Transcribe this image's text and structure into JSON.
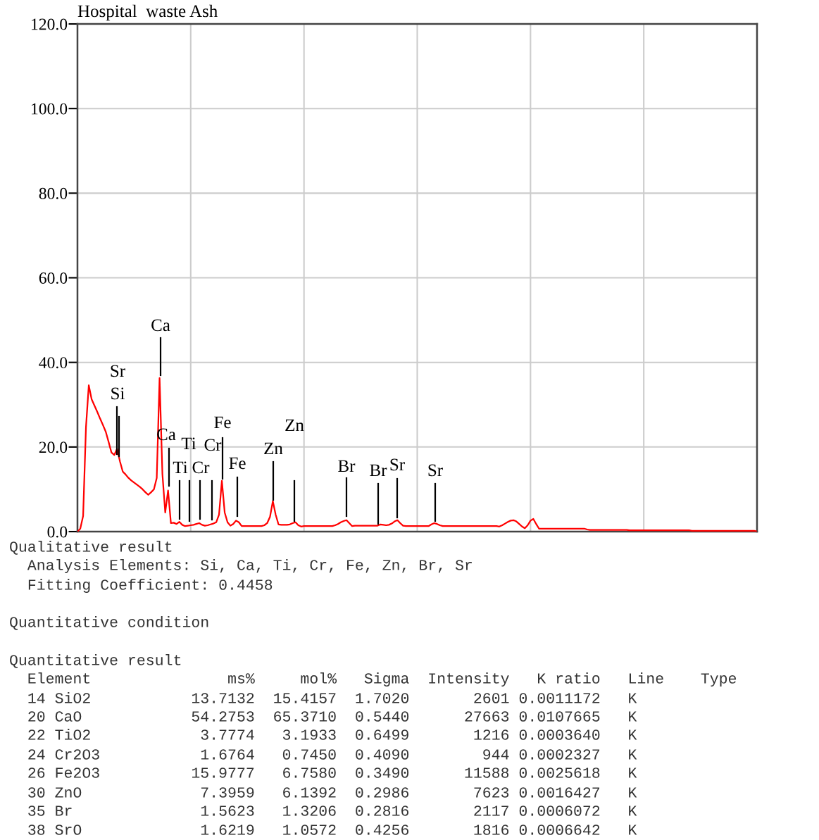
{
  "chart_data": {
    "type": "line",
    "title": "Hospital  waste Ash",
    "categories": [
      null,
      null,
      null,
      null,
      null,
      null,
      null,
      null,
      null,
      null,
      null,
      null,
      null,
      null,
      null,
      null,
      null,
      null,
      null,
      null,
      null,
      null,
      null,
      null,
      null,
      null,
      null,
      null,
      null,
      null,
      null,
      null,
      null,
      null,
      null,
      null,
      null,
      null,
      null,
      null,
      null,
      null,
      null,
      null,
      null,
      null,
      null,
      null,
      null,
      null,
      null,
      null,
      null,
      null,
      null,
      null,
      null,
      null,
      null,
      null,
      null,
      null,
      null,
      null,
      null,
      null,
      null,
      null,
      null,
      null,
      null,
      null,
      null,
      null,
      null,
      null,
      null,
      null,
      null,
      null,
      null,
      null,
      null,
      null,
      null,
      null,
      null,
      null,
      null,
      null,
      null,
      null,
      null,
      null,
      null,
      null,
      null,
      null,
      null,
      null,
      null,
      null,
      null,
      null,
      null,
      null,
      null,
      null,
      null,
      null,
      null,
      null,
      null,
      null,
      null,
      null,
      null,
      null,
      null,
      null,
      null,
      null,
      null,
      null,
      null,
      null,
      null,
      null,
      null,
      null,
      null,
      null,
      null,
      null,
      null,
      null,
      null,
      null,
      null,
      null,
      null,
      null,
      null,
      null,
      null,
      null,
      null,
      null,
      null,
      null,
      null,
      null,
      null,
      null,
      null,
      null,
      null,
      null,
      null,
      null,
      null,
      null,
      null,
      null,
      null,
      null,
      null,
      null,
      null,
      null,
      null,
      null,
      null,
      null,
      null,
      null,
      null,
      null,
      null,
      null,
      null,
      null,
      null,
      null,
      null,
      null,
      null,
      null,
      null,
      null,
      null,
      null,
      null,
      null,
      null,
      null,
      null,
      null,
      null,
      null,
      null,
      null,
      null,
      null,
      null,
      null,
      null,
      null,
      null,
      null,
      null,
      null,
      null,
      null,
      null,
      null,
      null,
      null,
      null,
      null,
      null,
      null,
      null,
      null,
      null,
      null,
      null,
      null,
      null,
      null,
      null,
      null,
      null,
      null,
      null,
      null,
      null,
      null,
      null,
      null,
      null
    ],
    "series": [
      {
        "color": "#ff0000",
        "values": [
          0,
          0.7,
          3.7,
          24.6,
          34.6,
          31.3,
          29.8,
          28.3,
          26.7,
          25.2,
          23.6,
          21.2,
          18.7,
          18.1,
          19.6,
          16.6,
          14.2,
          13.5,
          12.7,
          12.1,
          11.6,
          11.1,
          10.6,
          10.0,
          9.3,
          8.7,
          9.3,
          10.0,
          12.7,
          36.3,
          13.6,
          4.5,
          9.7,
          2.0,
          2.1,
          1.8,
          2.3,
          1.6,
          1.3,
          1.4,
          1.5,
          1.6,
          1.8,
          2.0,
          1.6,
          1.4,
          1.5,
          1.7,
          1.9,
          2.2,
          4.0,
          12.0,
          4.5,
          2.2,
          1.4,
          1.8,
          2.6,
          2.2,
          1.3,
          1.3,
          1.3,
          1.3,
          1.3,
          1.3,
          1.3,
          1.3,
          1.5,
          2.0,
          3.5,
          7.2,
          4.0,
          1.7,
          1.6,
          1.6,
          1.6,
          1.7,
          2.0,
          2.2,
          1.5,
          1.2,
          1.3,
          1.3,
          1.3,
          1.3,
          1.3,
          1.3,
          1.3,
          1.3,
          1.3,
          1.3,
          1.3,
          1.5,
          1.8,
          2.2,
          2.5,
          2.7,
          2.0,
          1.3,
          1.4,
          1.4,
          1.4,
          1.4,
          1.4,
          1.4,
          1.4,
          1.4,
          1.4,
          1.7,
          1.6,
          1.5,
          1.6,
          1.9,
          2.4,
          2.7,
          2.0,
          1.4,
          1.3,
          1.3,
          1.3,
          1.3,
          1.3,
          1.3,
          1.3,
          1.3,
          1.3,
          1.7,
          2.0,
          1.8,
          1.5,
          1.3,
          1.3,
          1.3,
          1.3,
          1.3,
          1.3,
          1.3,
          1.3,
          1.3,
          1.3,
          1.3,
          1.3,
          1.3,
          1.3,
          1.3,
          1.3,
          1.3,
          1.3,
          1.3,
          1.3,
          1.2,
          1.5,
          1.9,
          2.3,
          2.6,
          2.7,
          2.4,
          1.8,
          1.2,
          0.8,
          1.5,
          2.6,
          3.0,
          1.8,
          0.7,
          0.7,
          0.7,
          0.7,
          0.7,
          0.7,
          0.7,
          0.7,
          0.7,
          0.7,
          0.7,
          0.7,
          0.7,
          0.7,
          0.7,
          0.7,
          0.7,
          0.5,
          0.4,
          0.4,
          0.4,
          0.4,
          0.4,
          0.4,
          0.4,
          0.4,
          0.4,
          0.4,
          0.4,
          0.4,
          0.4,
          0.4,
          0.3,
          0.3,
          0.3,
          0.3,
          0.3,
          0.3,
          0.3,
          0.3,
          0.3,
          0.3,
          0.3,
          0.3,
          0.3,
          0.3,
          0.3,
          0.3,
          0.3,
          0.3,
          0.3,
          0.3,
          0.3,
          0.3,
          0.2,
          0.2,
          0.2,
          0.2,
          0.2,
          0.2,
          0.2,
          0.2,
          0.2,
          0.2,
          0.2,
          0.2,
          0.2,
          0.2,
          0.2,
          0.2,
          0.2,
          0.2,
          0.2,
          0.2,
          0.2,
          0.2,
          0.2,
          0
        ]
      }
    ],
    "ylim": [
      0,
      120
    ],
    "yticks": [
      {
        "value": 0,
        "label": "0.0"
      },
      {
        "value": 20,
        "label": "20.0"
      },
      {
        "value": 40,
        "label": "40.0"
      },
      {
        "value": 60,
        "label": "60.0"
      },
      {
        "value": 80,
        "label": "80.0"
      },
      {
        "value": 100,
        "label": "100.0"
      },
      {
        "value": 120,
        "label": "120.0"
      }
    ],
    "grid": true,
    "annotations": [
      "Sr",
      "Si",
      "Ca",
      "Ca",
      "Ti",
      "Ti",
      "Cr",
      "Cr",
      "Fe",
      "Fe",
      "Zn",
      "Zn",
      "Br",
      "Br",
      "Sr",
      "Sr",
      "Qualitative result",
      "  Analysis Elements: Si, Ca, Ti, Cr, Fe, Zn, Br, Sr",
      "  Fitting Coefficient: 0.4458",
      "Quantitative condition",
      "Quantitative result",
      "  Element               ms%     mol%   Sigma  Intensity   K ratio   Line    Type",
      "  14 SiO2           13.7132  15.4157  1.7020       2601 0.0011172   K",
      "  20 CaO            54.2753  65.3710  0.5440      27663 0.0107665   K",
      "  22 TiO2            3.7774   3.1933  0.6499       1216 0.0003640   K",
      "  24 Cr2O3           1.6764   0.7450  0.4090        944 0.0002327   K",
      "  26 Fe2O3          15.9777   6.7580  0.3490      11588 0.0025618   K",
      "  30 ZnO             7.3959   6.1392  0.2986       7623 0.0016427   K",
      "  35 Br              1.5623   1.3206  0.2816       2117 0.0006072   K",
      "  38 SrO             1.6219   1.0572  0.4256       1816 0.0006642   K"
    ]
  }
}
